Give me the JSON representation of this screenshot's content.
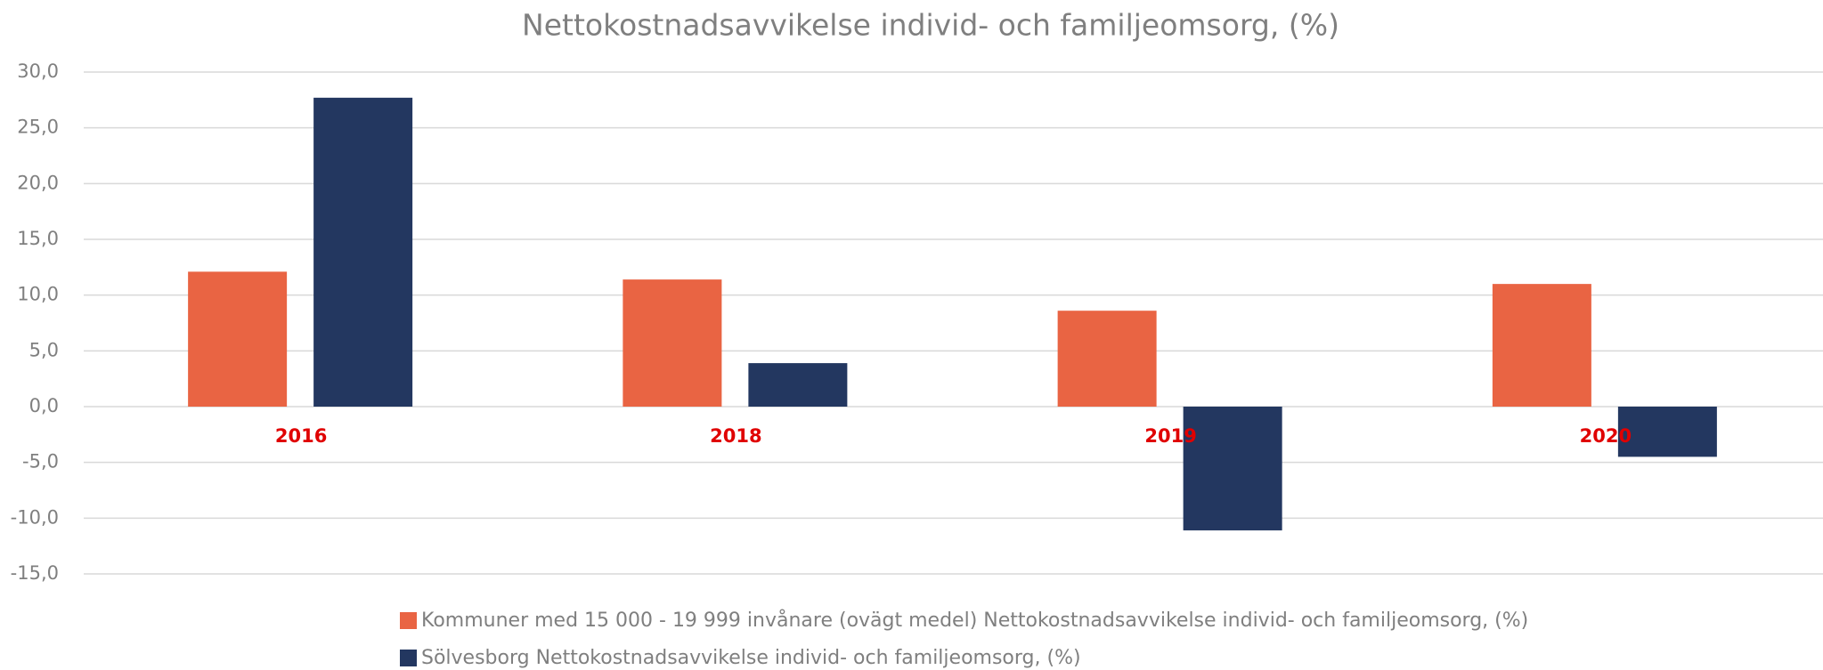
{
  "chart_data": {
    "type": "bar",
    "title": "Nettokostnadsavvikelse individ- och familjeomsorg, (%)",
    "categories": [
      "2016",
      "2018",
      "2019",
      "2020"
    ],
    "series": [
      {
        "name": "Kommuner med 15 000 - 19 999 invånare (ovägt medel) Nettokostnadsavvikelse individ- och familjeomsorg, (%)",
        "color": "#E96443",
        "values": [
          12.1,
          11.4,
          8.6,
          11.0
        ]
      },
      {
        "name": "Sölvesborg Nettokostnadsavvikelse individ- och familjeomsorg, (%)",
        "color": "#233760",
        "values": [
          27.7,
          3.9,
          -11.1,
          -4.5
        ]
      }
    ],
    "ylim": [
      -15,
      30
    ],
    "yticks": [
      {
        "value": -15,
        "label": "-15,0"
      },
      {
        "value": -10,
        "label": "-10,0"
      },
      {
        "value": -5,
        "label": "-5,0"
      },
      {
        "value": 0,
        "label": "0,0"
      },
      {
        "value": 5,
        "label": "5,0"
      },
      {
        "value": 10,
        "label": "10,0"
      },
      {
        "value": 15,
        "label": "15,0"
      },
      {
        "value": 20,
        "label": "20,0"
      },
      {
        "value": 25,
        "label": "25,0"
      },
      {
        "value": 30,
        "label": "30,0"
      }
    ],
    "grid": true
  }
}
